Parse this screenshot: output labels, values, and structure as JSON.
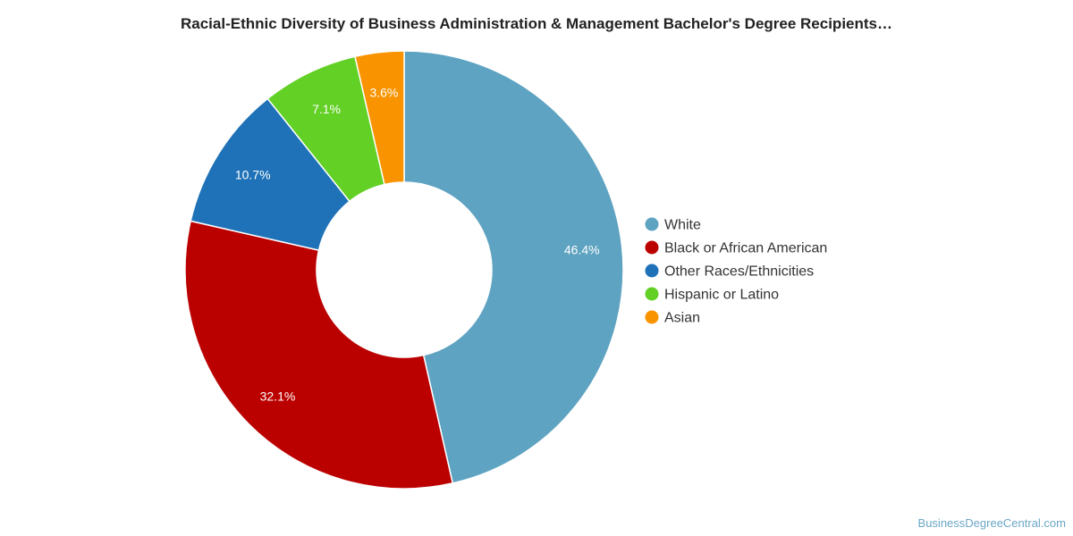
{
  "chart_data": {
    "type": "pie",
    "title": "Racial-Ethnic Diversity of Business Administration & Management Bachelor's Degree Recipients…",
    "categories": [
      "White",
      "Black or African American",
      "Other Races/Ethnicities",
      "Hispanic or Latino",
      "Asian"
    ],
    "values": [
      46.4,
      32.1,
      10.7,
      7.1,
      3.6
    ],
    "labels": [
      "46.4%",
      "32.1%",
      "10.7%",
      "7.1%",
      "3.6%"
    ],
    "colors": [
      "#5ea3c1",
      "#bb0000",
      "#1f72b8",
      "#62d024",
      "#f99400"
    ],
    "legend_position": "right",
    "donut": true
  },
  "source_credit": "BusinessDegreeCentral.com"
}
